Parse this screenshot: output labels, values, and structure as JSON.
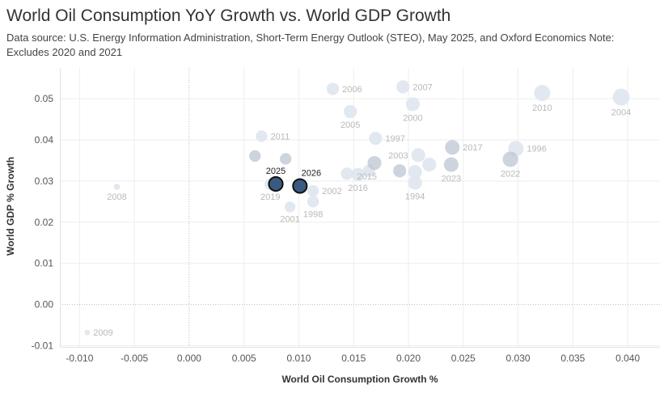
{
  "header": {
    "title": "World Oil Consumption YoY Growth vs. World GDP Growth",
    "subtitle": "Data source: U.S. Energy Information Administration, Short-Term Energy Outlook (STEO), May 2025, and Oxford Economics Note: Excludes 2020 and 2021"
  },
  "colors": {
    "point_fill": "#dfe6ee",
    "point_fill_dark": "#bcc6d2",
    "highlight_fill": "#3a5a80",
    "highlight_stroke": "#111111",
    "label": "#b9b9b9",
    "grid": "#eeeeee",
    "zero_line": "#bbbbbb"
  },
  "chart_data": {
    "type": "scatter",
    "title": "World Oil Consumption YoY Growth vs. World GDP Growth",
    "xlabel": "World Oil Consumption Growth %",
    "ylabel": "World GDP % Growth",
    "xlim": [
      -0.0118,
      0.0425
    ],
    "ylim": [
      -0.0105,
      0.0575
    ],
    "xticks": [
      -0.01,
      -0.005,
      0.0,
      0.005,
      0.01,
      0.015,
      0.02,
      0.025,
      0.03,
      0.035,
      0.04
    ],
    "xtick_labels": [
      "-0.010",
      "-0.005",
      "0.000",
      "0.005",
      "0.010",
      "0.015",
      "0.020",
      "0.025",
      "0.030",
      "0.035",
      "0.040"
    ],
    "yticks": [
      -0.01,
      0.0,
      0.01,
      0.02,
      0.03,
      0.04,
      0.05
    ],
    "ytick_labels": [
      "-0.01",
      "0.00",
      "0.01",
      "0.02",
      "0.03",
      "0.04",
      "0.05"
    ],
    "grid": true,
    "points": [
      {
        "year": "2004",
        "x": 0.0394,
        "y": 0.0504,
        "size": 3.6,
        "label": "2004",
        "label_side": "below",
        "shade": "light"
      },
      {
        "year": "2010",
        "x": 0.0322,
        "y": 0.0514,
        "size": 3.4,
        "label": "2010",
        "label_side": "below",
        "shade": "light"
      },
      {
        "year": "2007",
        "x": 0.0195,
        "y": 0.0529,
        "size": 2.6,
        "label": "2007",
        "label_side": "right",
        "shade": "light"
      },
      {
        "year": "2006",
        "x": 0.0131,
        "y": 0.0524,
        "size": 2.4,
        "label": "2006",
        "label_side": "right",
        "shade": "light"
      },
      {
        "year": "2000",
        "x": 0.0204,
        "y": 0.0487,
        "size": 2.8,
        "label": "2000",
        "label_side": "below",
        "shade": "light"
      },
      {
        "year": "2005",
        "x": 0.0147,
        "y": 0.0469,
        "size": 2.6,
        "label": "2005",
        "label_side": "below",
        "shade": "light"
      },
      {
        "year": "2011",
        "x": 0.0066,
        "y": 0.0409,
        "size": 2.2,
        "label": "2011",
        "label_side": "right",
        "shade": "light"
      },
      {
        "year": "1997",
        "x": 0.017,
        "y": 0.0404,
        "size": 2.6,
        "label": "1997",
        "label_side": "right",
        "shade": "light"
      },
      {
        "year": "1996",
        "x": 0.0298,
        "y": 0.0379,
        "size": 3.2,
        "label": "1996",
        "label_side": "right",
        "shade": "light"
      },
      {
        "year": "2017",
        "x": 0.024,
        "y": 0.0382,
        "size": 3.0,
        "label": "2017",
        "label_side": "right",
        "shade": "dark"
      },
      {
        "year": "2003",
        "x": 0.0209,
        "y": 0.0363,
        "size": 2.8,
        "label": "2003",
        "label_side": "left",
        "shade": "light"
      },
      {
        "year": "2022",
        "x": 0.0293,
        "y": 0.0353,
        "size": 3.2,
        "label": "2022",
        "label_side": "below",
        "shade": "dark"
      },
      {
        "year": "2023",
        "x": 0.0239,
        "y": 0.034,
        "size": 3.0,
        "label": "2023",
        "label_side": "below",
        "shade": "dark"
      },
      {
        "year": "2015",
        "x": 0.0169,
        "y": 0.0344,
        "size": 2.8,
        "label": "2015",
        "label_side": "belowright",
        "shade": "dark"
      },
      {
        "year": "1994",
        "x": 0.0206,
        "y": 0.0296,
        "size": 2.8,
        "label": "1994",
        "label_side": "below",
        "shade": "light"
      },
      {
        "year": "2016",
        "x": 0.0154,
        "y": 0.0316,
        "size": 2.6,
        "label": "2016",
        "label_side": "below",
        "shade": "light"
      },
      {
        "year": "2002",
        "x": 0.0113,
        "y": 0.0276,
        "size": 2.2,
        "label": "2002",
        "label_side": "right",
        "shade": "light"
      },
      {
        "year": "2019",
        "x": 0.0074,
        "y": 0.0292,
        "size": 2.2,
        "label": "2019",
        "label_side": "below",
        "shade": "light"
      },
      {
        "year": "1998",
        "x": 0.0113,
        "y": 0.025,
        "size": 2.2,
        "label": "1998",
        "label_side": "below",
        "shade": "light"
      },
      {
        "year": "2001",
        "x": 0.0092,
        "y": 0.0237,
        "size": 2.0,
        "label": "2001",
        "label_side": "below",
        "shade": "light"
      },
      {
        "year": "2008",
        "x": -0.0066,
        "y": 0.0286,
        "size": 0.8,
        "label": "2008",
        "label_side": "below",
        "shade": "light"
      },
      {
        "year": "2009",
        "x": -0.0093,
        "y": -0.0068,
        "size": 0.6,
        "label": "2009",
        "label_side": "right",
        "shade": "light"
      },
      {
        "year": "",
        "x": 0.006,
        "y": 0.0361,
        "size": 2.2,
        "label": "",
        "label_side": "none",
        "shade": "dark"
      },
      {
        "year": "",
        "x": 0.0088,
        "y": 0.0354,
        "size": 2.2,
        "label": "",
        "label_side": "none",
        "shade": "dark"
      },
      {
        "year": "",
        "x": 0.0144,
        "y": 0.0318,
        "size": 2.4,
        "label": "",
        "label_side": "none",
        "shade": "light"
      },
      {
        "year": "",
        "x": 0.0164,
        "y": 0.0325,
        "size": 2.4,
        "label": "",
        "label_side": "none",
        "shade": "light"
      },
      {
        "year": "",
        "x": 0.0192,
        "y": 0.0325,
        "size": 2.6,
        "label": "",
        "label_side": "none",
        "shade": "dark"
      },
      {
        "year": "",
        "x": 0.0206,
        "y": 0.0322,
        "size": 2.8,
        "label": "",
        "label_side": "none",
        "shade": "light"
      },
      {
        "year": "",
        "x": 0.0219,
        "y": 0.034,
        "size": 2.8,
        "label": "",
        "label_side": "none",
        "shade": "light"
      },
      {
        "year": "2025",
        "x": 0.0079,
        "y": 0.0293,
        "size": 2.8,
        "label": "2025",
        "label_side": "above",
        "shade": "highlight"
      },
      {
        "year": "2026",
        "x": 0.0101,
        "y": 0.0288,
        "size": 2.8,
        "label": "2026",
        "label_side": "aboveright",
        "shade": "highlight"
      }
    ]
  }
}
